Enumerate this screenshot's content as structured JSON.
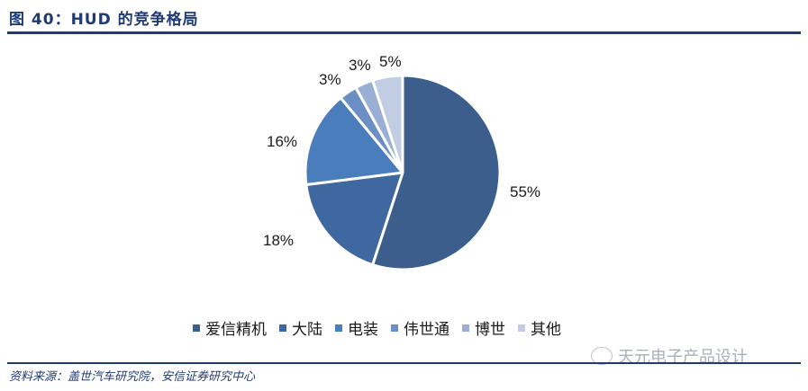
{
  "header": {
    "title": "图 40：HUD 的竞争格局"
  },
  "chart_data": {
    "type": "pie",
    "title": "HUD 的竞争格局",
    "categories": [
      "爱信精机",
      "大陆",
      "电装",
      "伟世通",
      "博世",
      "其他"
    ],
    "values": [
      55,
      18,
      16,
      3,
      3,
      5
    ],
    "labels": [
      "55%",
      "18%",
      "16%",
      "3%",
      "3%",
      "5%"
    ],
    "colors": [
      "#3b5e8c",
      "#3f67a0",
      "#4a7dbb",
      "#6b8fc4",
      "#9aafd3",
      "#c1cde3"
    ],
    "start_angle": "12 o'clock",
    "direction": "clockwise",
    "legend_position": "bottom"
  },
  "legend": {
    "items": [
      {
        "label": "爱信精机",
        "color": "#3b5e8c"
      },
      {
        "label": "大陆",
        "color": "#3f67a0"
      },
      {
        "label": "电装",
        "color": "#4a7dbb"
      },
      {
        "label": "伟世通",
        "color": "#6b8fc4"
      },
      {
        "label": "博世",
        "color": "#9aafd3"
      },
      {
        "label": "其他",
        "color": "#c1cde3"
      }
    ]
  },
  "footer": {
    "source": "资料来源：盖世汽车研究院，安信证券研究中心",
    "watermark": "天元电子产品设计"
  }
}
